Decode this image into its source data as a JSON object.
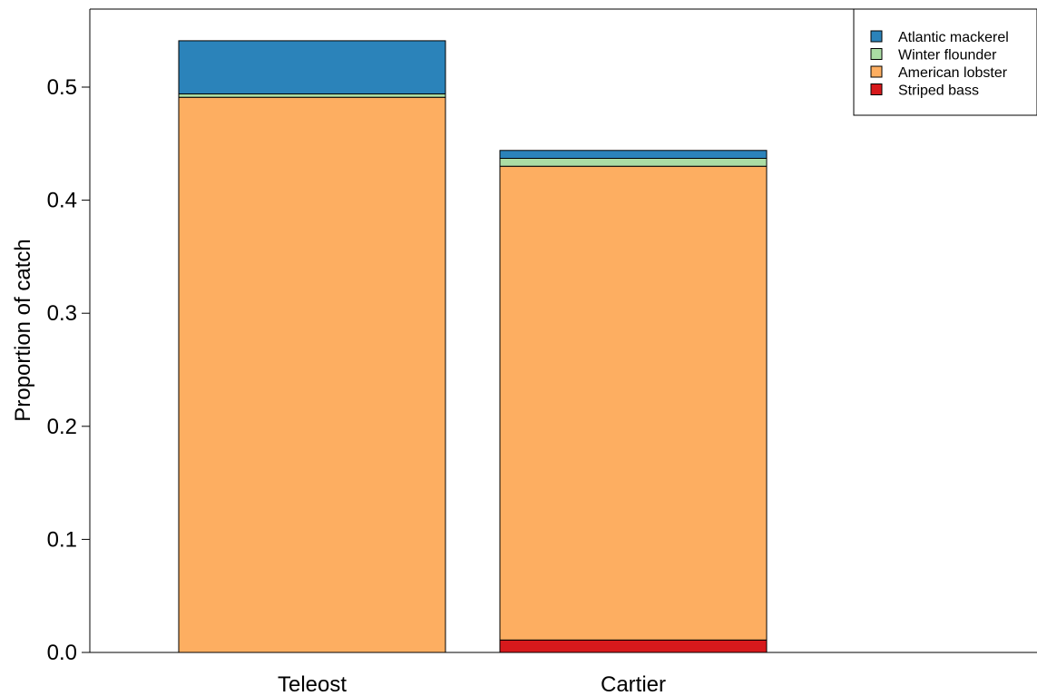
{
  "chart_data": {
    "type": "bar",
    "stacked": true,
    "categories": [
      "Teleost",
      "Cartier"
    ],
    "series": [
      {
        "name": "Striped bass",
        "color": "#d7191c",
        "values": [
          0.0,
          0.011
        ]
      },
      {
        "name": "American lobster",
        "color": "#fdae61",
        "values": [
          0.491,
          0.419
        ]
      },
      {
        "name": "Winter flounder",
        "color": "#abdda4",
        "values": [
          0.003,
          0.007
        ]
      },
      {
        "name": "Atlantic mackerel",
        "color": "#2b83ba",
        "values": [
          0.047,
          0.007
        ]
      }
    ],
    "legend_order": [
      "Atlantic mackerel",
      "Winter flounder",
      "American lobster",
      "Striped bass"
    ],
    "title": "",
    "xlabel": "",
    "ylabel": "Proportion of catch",
    "ylim": [
      0,
      0.565
    ],
    "yticks": [
      "0.0",
      "0.1",
      "0.2",
      "0.3",
      "0.4",
      "0.5"
    ],
    "legend_position": "top-right",
    "grid": false
  }
}
